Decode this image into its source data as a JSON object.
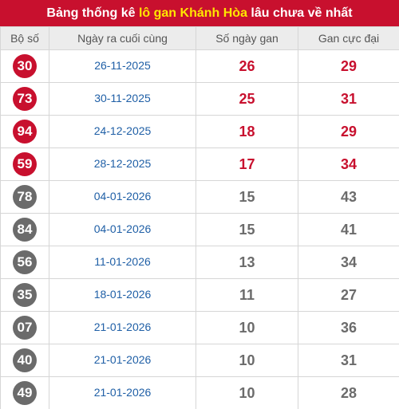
{
  "title": {
    "prefix": "Bảng thống kê ",
    "highlight": "lô gan Khánh Hòa",
    "suffix": " lâu chưa về nhất"
  },
  "headers": [
    "Bộ số",
    "Ngày ra cuối cùng",
    "Số ngày gan",
    "Gan cực đại"
  ],
  "colors": {
    "accent": "#c8102e",
    "highlight": "#ffe600",
    "gray": "#6b6b6b",
    "date": "#1f5fa6"
  },
  "rows": [
    {
      "number": "30",
      "date": "26-11-2025",
      "days": "26",
      "max": "29",
      "highlight": true
    },
    {
      "number": "73",
      "date": "30-11-2025",
      "days": "25",
      "max": "31",
      "highlight": true
    },
    {
      "number": "94",
      "date": "24-12-2025",
      "days": "18",
      "max": "29",
      "highlight": true
    },
    {
      "number": "59",
      "date": "28-12-2025",
      "days": "17",
      "max": "34",
      "highlight": true
    },
    {
      "number": "78",
      "date": "04-01-2026",
      "days": "15",
      "max": "43",
      "highlight": false
    },
    {
      "number": "84",
      "date": "04-01-2026",
      "days": "15",
      "max": "41",
      "highlight": false
    },
    {
      "number": "56",
      "date": "11-01-2026",
      "days": "13",
      "max": "34",
      "highlight": false
    },
    {
      "number": "35",
      "date": "18-01-2026",
      "days": "11",
      "max": "27",
      "highlight": false
    },
    {
      "number": "07",
      "date": "21-01-2026",
      "days": "10",
      "max": "36",
      "highlight": false
    },
    {
      "number": "40",
      "date": "21-01-2026",
      "days": "10",
      "max": "31",
      "highlight": false
    },
    {
      "number": "49",
      "date": "21-01-2026",
      "days": "10",
      "max": "28",
      "highlight": false
    }
  ]
}
